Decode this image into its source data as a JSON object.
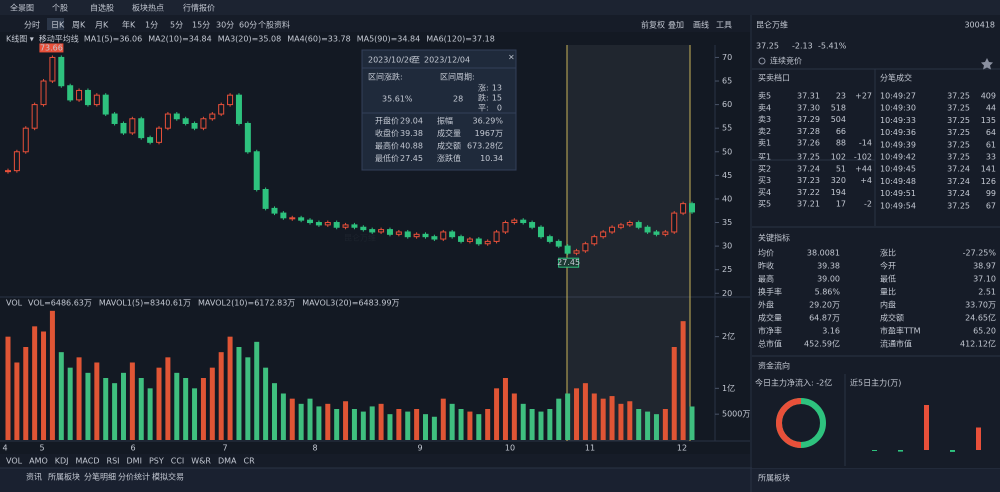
{
  "nav": [
    "全景图",
    "个股",
    "自选股",
    "板块热点",
    "行情报价"
  ],
  "period_tabs": [
    "分时",
    "日K",
    "周K",
    "月K",
    "年K",
    "1分",
    "5分",
    "15分",
    "30分",
    "60分",
    "个股资料"
  ],
  "tools": [
    "前复权",
    "叠加",
    "画线",
    "工具"
  ],
  "chart_data": [
    {
      "type": "candlestick",
      "indicator_label": "K线图 ▾",
      "ma_label": "移动平均线",
      "ma": [
        {
          "name": "MA1(5)=36.06",
          "color": "#e6e6e6"
        },
        {
          "name": "MA2(10)=34.84",
          "color": "#f0a030"
        },
        {
          "name": "MA3(20)=35.08",
          "color": "#4a90e2"
        },
        {
          "name": "MA4(60)=33.78",
          "color": "#b070e0"
        },
        {
          "name": "MA5(90)=34.84",
          "color": "#3cb0a0"
        },
        {
          "name": "MA6(120)=37.18",
          "color": "#e8703a"
        }
      ],
      "values": [
        46,
        50,
        55,
        60,
        65,
        70,
        64,
        61,
        63,
        60,
        62,
        58,
        56,
        54,
        57,
        53,
        52,
        55,
        58,
        57,
        56,
        55,
        57,
        58,
        60,
        62,
        56,
        50,
        42,
        38,
        37,
        36,
        36,
        35.5,
        35,
        34.5,
        35,
        34,
        34.5,
        34,
        33.5,
        33,
        33.5,
        32.5,
        33,
        32,
        32.5,
        32,
        31.5,
        33,
        32,
        31,
        31.5,
        30.5,
        31,
        33,
        35,
        35.5,
        35,
        34,
        32,
        31,
        30,
        28.5,
        29,
        30.5,
        32,
        33,
        34,
        34.5,
        35,
        34,
        33,
        32.5,
        33,
        37,
        39,
        37.25
      ],
      "up_color": "#e8503a",
      "down_color": "#2ec27e",
      "ylim": [
        19,
        72
      ],
      "yticks": [
        70,
        65,
        60,
        55,
        50,
        45,
        40,
        35,
        30,
        25,
        20
      ],
      "high_label": "73.66",
      "low_label": "27.45",
      "watermark": "昆仑万维",
      "months": [
        "4",
        "5",
        "6",
        "7",
        "8",
        "9",
        "10",
        "11",
        "12"
      ]
    },
    {
      "type": "bar",
      "title": "VOL",
      "items": [
        {
          "name": "VOL=6486.63万",
          "color": "#e6e6e6"
        },
        {
          "name": "MAVOL1(5)=8340.61万",
          "color": "#4a90e2"
        },
        {
          "name": "MAVOL2(10)=6172.83万",
          "color": "#f0a030"
        },
        {
          "name": "MAVOL3(20)=6483.99万",
          "color": "#b070e0"
        }
      ],
      "values": [
        20000,
        15000,
        18000,
        22000,
        21000,
        25000,
        17000,
        14000,
        16000,
        13000,
        15000,
        12000,
        11000,
        13000,
        15000,
        12000,
        10000,
        14000,
        16000,
        13000,
        12000,
        10000,
        12000,
        14000,
        17000,
        20000,
        18000,
        16000,
        19000,
        14000,
        11000,
        9000,
        8000,
        7000,
        8000,
        6500,
        7000,
        6000,
        7500,
        6000,
        5500,
        6500,
        7000,
        5000,
        6000,
        5500,
        6000,
        5000,
        4500,
        8000,
        7000,
        6000,
        5500,
        5000,
        6000,
        10000,
        12000,
        9000,
        7000,
        6000,
        5500,
        6000,
        8000,
        9000,
        10000,
        11000,
        9000,
        8000,
        8500,
        7000,
        7500,
        6000,
        5500,
        5000,
        6000,
        18000,
        23000,
        6486.63
      ],
      "ylim": [
        0,
        24000
      ],
      "yticks": [
        {
          "value": 20000,
          "label": "2亿"
        },
        {
          "value": 10000,
          "label": "1亿"
        },
        {
          "value": 5000,
          "label": "5000万"
        }
      ]
    }
  ],
  "interval": {
    "range_start": "2023/10/26",
    "to": "至",
    "range_end": "2023/12/04",
    "close_icon": "×",
    "change_label": "区间涨跌:",
    "period_label": "区间周期:",
    "change": "35.61%",
    "period": "28",
    "counts": [
      [
        "涨:",
        "13"
      ],
      [
        "跌:",
        "15"
      ],
      [
        "平:",
        "0"
      ]
    ],
    "stats": [
      [
        "开盘价",
        "29.04",
        "振幅",
        "36.29%"
      ],
      [
        "收盘价",
        "39.38",
        "成交量",
        "1967万"
      ],
      [
        "最高价",
        "40.88",
        "成交额",
        "673.28亿"
      ],
      [
        "最低价",
        "27.45",
        "涨跌值",
        "10.34"
      ]
    ],
    "stat_colors": [
      [
        "#e6e6e6",
        "#e6e6e6"
      ],
      [
        "#e8503a",
        "#e6e6e6"
      ],
      [
        "#e8503a",
        "#e6e6e6"
      ],
      [
        "#2ec27e",
        "#e8503a"
      ]
    ]
  },
  "indicator_tabs": [
    "VOL",
    "AMO",
    "KDJ",
    "MACD",
    "RSI",
    "DMI",
    "PSY",
    "CCI",
    "W&R",
    "DMA",
    "CR"
  ],
  "news_tabs": [
    "资讯",
    "所属板块",
    "分笔明细",
    "分价统计",
    "模拟交易"
  ],
  "quote": {
    "name": "昆仑万维",
    "code": "300418",
    "price": "37.25",
    "change": "-2.13",
    "pct": "-5.41%",
    "status": "连续竞价"
  },
  "order_book": {
    "title": "买卖档口",
    "rows": [
      [
        "卖5",
        "37.31",
        "23",
        "+27"
      ],
      [
        "卖4",
        "37.30",
        "518"
      ],
      [
        "卖3",
        "37.29",
        "504"
      ],
      [
        "卖2",
        "37.28",
        "66"
      ],
      [
        "卖1",
        "37.26",
        "88",
        "-14"
      ],
      [
        "买1",
        "37.25",
        "102",
        "-102"
      ],
      [
        "买2",
        "37.24",
        "51",
        "+44"
      ],
      [
        "买3",
        "37.23",
        "320",
        "+4"
      ],
      [
        "买4",
        "37.22",
        "194"
      ],
      [
        "买5",
        "37.21",
        "17",
        "-2"
      ]
    ]
  },
  "trades": {
    "title": "分笔成交",
    "rows": [
      [
        "10:49:27",
        "37.25",
        "409"
      ],
      [
        "10:49:30",
        "37.25",
        "44"
      ],
      [
        "10:49:33",
        "37.25",
        "135"
      ],
      [
        "10:49:36",
        "37.25",
        "64"
      ],
      [
        "10:49:39",
        "37.25",
        "61"
      ],
      [
        "10:49:42",
        "37.25",
        "33"
      ],
      [
        "10:49:45",
        "37.24",
        "141"
      ],
      [
        "10:49:48",
        "37.24",
        "126"
      ],
      [
        "10:49:51",
        "37.24",
        "99"
      ],
      [
        "10:49:54",
        "37.25",
        "67"
      ]
    ]
  },
  "key_indicators": {
    "title": "关键指标",
    "rows": [
      [
        "均价",
        "38.0081",
        "涨比",
        "-27.25%"
      ],
      [
        "昨收",
        "39.38",
        "今开",
        "38.97"
      ],
      [
        "最高",
        "39.00",
        "最低",
        "37.10"
      ],
      [
        "换手率",
        "5.86%",
        "量比",
        "2.51"
      ],
      [
        "外盘",
        "29.20万",
        "内盘",
        "33.70万"
      ],
      [
        "成交量",
        "64.87万",
        "成交额",
        "24.65亿"
      ],
      [
        "市净率",
        "3.16",
        "市盈率TTM",
        "65.20"
      ],
      [
        "总市值",
        "452.59亿",
        "流通市值",
        "412.12亿"
      ]
    ],
    "colors": [
      [
        "#2ec27e",
        "#2ec27e"
      ],
      [
        "#e6e6e6",
        "#2ec27e"
      ],
      [
        "#2ec27e",
        "#2ec27e"
      ],
      [
        "#e6e6e6",
        "#e6e6e6"
      ],
      [
        "#e8503a",
        "#2ec27e"
      ],
      [
        "#e6e6e6",
        "#e6e6e6"
      ],
      [
        "#e6e6e6",
        "#e6e6e6"
      ],
      [
        "#e6e6e6",
        "#e6e6e6"
      ]
    ]
  },
  "fund_flow": {
    "title": "资金流向",
    "today": "今日主力净流入: -2亿",
    "five_day": "近5日主力(万)",
    "five_day_values": [
      -300,
      -500,
      14000,
      -600,
      7000
    ]
  },
  "board_title": "所属板块"
}
